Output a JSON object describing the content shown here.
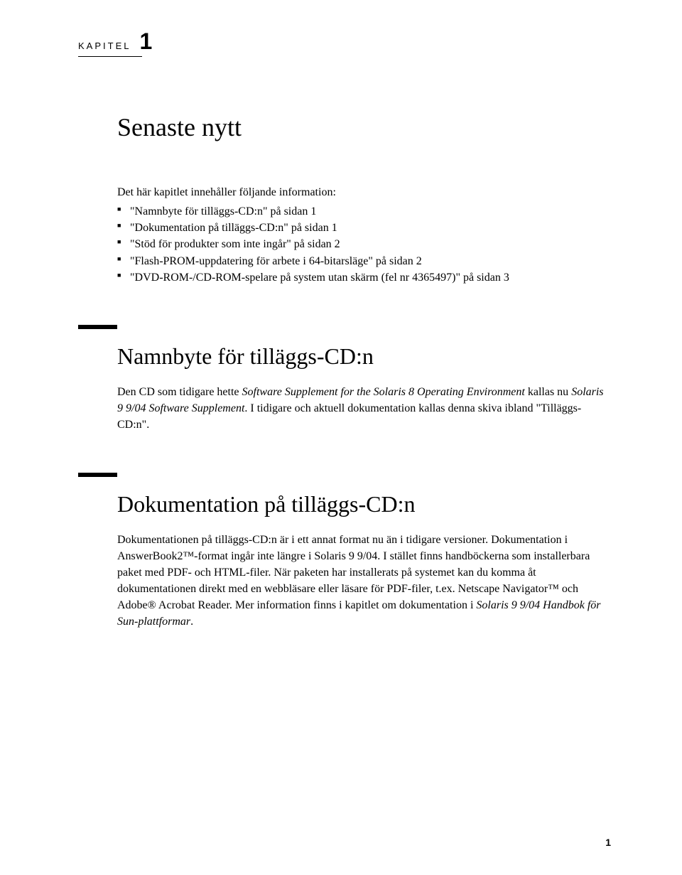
{
  "chapter": {
    "label": "KAPITEL",
    "number": "1",
    "title": "Senaste nytt"
  },
  "intro": {
    "text": "Det här kapitlet innehåller följande information:",
    "bullets": [
      "\"Namnbyte för tilläggs-CD:n\" på sidan 1",
      "\"Dokumentation på tilläggs-CD:n\" på sidan 1",
      "\"Stöd för produkter som inte ingår\" på sidan 2",
      "\"Flash-PROM-uppdatering för arbete i 64-bitarsläge\" på sidan 2",
      "\"DVD-ROM-/CD-ROM-spelare på system utan skärm (fel nr 4365497)\" på sidan 3"
    ]
  },
  "section1": {
    "title": "Namnbyte för tilläggs-CD:n",
    "p1a": "Den CD som tidigare hette ",
    "p1b": "Software Supplement for the Solaris 8 Operating Environment",
    "p1c": " kallas nu ",
    "p1d": "Solaris 9 9/04 Software Supplement",
    "p1e": ". I tidigare och aktuell dokumentation kallas denna skiva ibland \"Tilläggs-CD:n\"."
  },
  "section2": {
    "title": "Dokumentation på tilläggs-CD:n",
    "p1a": "Dokumentationen på tilläggs-CD:n är i ett annat format nu än i tidigare versioner. Dokumentation i AnswerBook2™-format ingår inte längre i Solaris 9 9/04. I stället finns handböckerna som installerbara paket med PDF- och HTML-filer. När paketen har installerats på systemet kan du komma åt dokumentationen direkt med en webbläsare eller läsare för PDF-filer, t.ex. Netscape Navigator™ och Adobe® Acrobat Reader. Mer information finns i kapitlet om dokumentation i ",
    "p1b": "Solaris 9 9/04 Handbok för Sun-plattformar",
    "p1c": "."
  },
  "page_number": "1"
}
